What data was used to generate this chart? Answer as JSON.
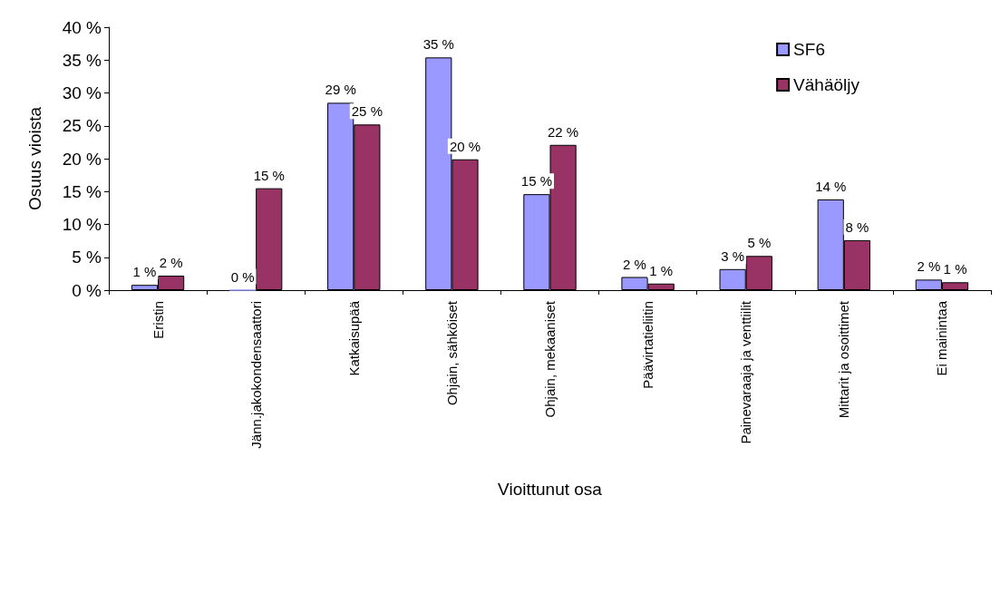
{
  "chart_data": {
    "type": "bar",
    "xlabel": "Vioittunut osa",
    "ylabel": "Osuus vioista",
    "categories": [
      "Eristin",
      "Jänn.jakokondensaattori",
      "Katkaisupää",
      "Ohjain, sähköiset",
      "Ohjain, mekaaniset",
      "Päävirtatieliitin",
      "Painevaraaja ja venttiilit",
      "Mittarit ja osoittimet",
      "Ei mainintaa"
    ],
    "series": [
      {
        "name": "SF6",
        "color": "#9999ff",
        "values": [
          0.8,
          0,
          28.5,
          35.4,
          14.6,
          2.0,
          3.2,
          13.8,
          1.6
        ],
        "value_labels": [
          "1 %",
          "0 %",
          "29 %",
          "35 %",
          "15 %",
          "2 %",
          "3 %",
          "14 %",
          "2 %"
        ]
      },
      {
        "name": "Vähäöljy",
        "color": "#993366",
        "values": [
          2.2,
          15.5,
          25.2,
          19.9,
          22.1,
          1.0,
          5.2,
          7.6,
          1.2
        ],
        "value_labels": [
          "2 %",
          "15 %",
          "25 %",
          "20 %",
          "22 %",
          "1 %",
          "5 %",
          "8 %",
          "1 %"
        ]
      }
    ],
    "ylim": [
      0,
      40
    ],
    "yticks": [
      {
        "value": 0,
        "label": "0 %"
      },
      {
        "value": 5,
        "label": "5 %"
      },
      {
        "value": 10,
        "label": "10 %"
      },
      {
        "value": 15,
        "label": "15 %"
      },
      {
        "value": 20,
        "label": "20 %"
      },
      {
        "value": 25,
        "label": "25 %"
      },
      {
        "value": 30,
        "label": "30 %"
      },
      {
        "value": 35,
        "label": "35 %"
      },
      {
        "value": 40,
        "label": "40 %"
      }
    ],
    "grid": false,
    "legend": "top right"
  }
}
